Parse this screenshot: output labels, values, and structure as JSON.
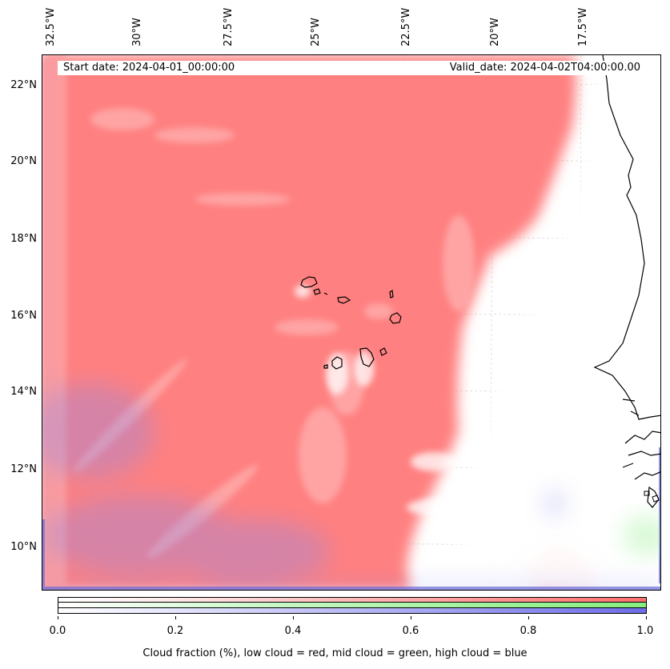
{
  "header": {
    "start_date": "Start date: 2024-04-01_00:00:00",
    "valid_date": "Valid_date: 2024-04-02T04:00:00.00"
  },
  "map": {
    "longitude_labels": [
      "32.5°W",
      "30°W",
      "27.5°W",
      "25°W",
      "22.5°W",
      "20°W",
      "17.5°W"
    ],
    "latitude_labels": [
      "22°N",
      "20°N",
      "18°N",
      "16°N",
      "14°N",
      "12°N",
      "10°N"
    ],
    "layers": [
      "low-cloud",
      "mid-cloud",
      "high-cloud",
      "coastline"
    ],
    "colors": {
      "low_cloud": "#ff7f7f",
      "mid_cloud": "#86ef80",
      "high_cloud": "#6d6de6",
      "coastline": "#000000"
    }
  },
  "colorbar": {
    "tick_labels": [
      "0.0",
      "0.2",
      "0.4",
      "0.6",
      "0.8",
      "1.0"
    ],
    "title": "Cloud fraction (%), low cloud = red, mid cloud = green, high cloud = blue"
  }
}
